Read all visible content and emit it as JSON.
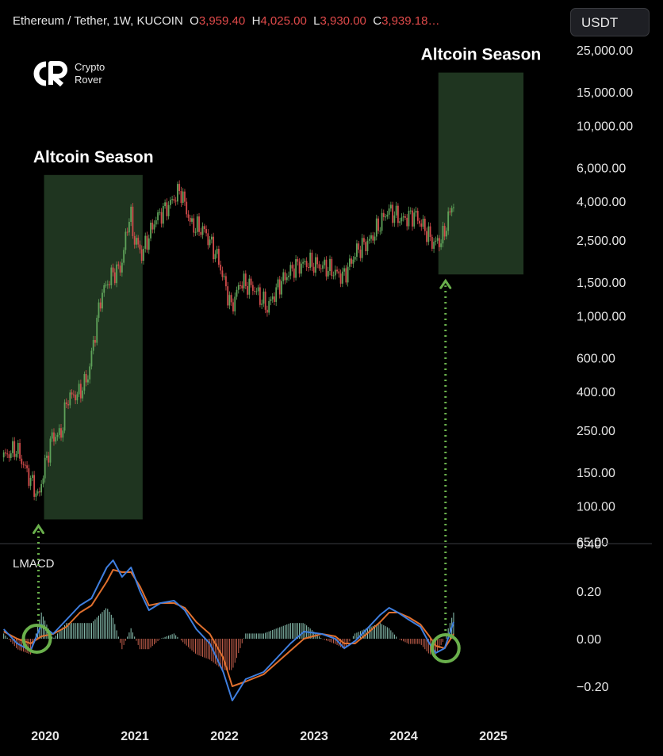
{
  "header": {
    "symbol": "Ethereum / Tether, 1W, KUCOIN",
    "open_label": "O",
    "open": "3,959.40",
    "high_label": "H",
    "high": "4,025.00",
    "low_label": "L",
    "low": "3,930.00",
    "close_label": "C",
    "close": "3,939.18…"
  },
  "currency": "USDT",
  "logo": {
    "line1": "Crypto",
    "line2": "Rover",
    "icon": "crypto-rover-logo-icon"
  },
  "colors": {
    "up": "#5fa35a",
    "down": "#d24b4b",
    "highlight": "#1f3520",
    "macd": "#3f7fe0",
    "signal": "#e0702e",
    "marker": "#6ab04c"
  },
  "chart_data": [
    {
      "type": "candlestick",
      "ylabel": "",
      "y_scale": "log",
      "ylim": [
        65,
        25000
      ],
      "y_ticks": [
        "25,000.00",
        "15,000.00",
        "10,000.00",
        "6,000.00",
        "4,000.00",
        "2,500.00",
        "1,500.00",
        "1,000.00",
        "600.00",
        "400.00",
        "250.00",
        "150.00",
        "100.00",
        "65.00"
      ],
      "x_ticks": [
        "2020",
        "2021",
        "2022",
        "2023",
        "2024",
        "2025"
      ],
      "xlim": [
        2019.9,
        2025.7
      ],
      "price_path": [
        [
          2019.9,
          180
        ],
        [
          2020.05,
          200
        ],
        [
          2020.2,
          140
        ],
        [
          2020.3,
          110
        ],
        [
          2020.35,
          150
        ],
        [
          2020.45,
          230
        ],
        [
          2020.55,
          240
        ],
        [
          2020.62,
          370
        ],
        [
          2020.75,
          390
        ],
        [
          2020.85,
          480
        ],
        [
          2021.0,
          1300
        ],
        [
          2021.12,
          1650
        ],
        [
          2021.22,
          1800
        ],
        [
          2021.32,
          3600
        ],
        [
          2021.35,
          2700
        ],
        [
          2021.45,
          2100
        ],
        [
          2021.6,
          3200
        ],
        [
          2021.75,
          3800
        ],
        [
          2021.88,
          4600
        ],
        [
          2022.0,
          3000
        ],
        [
          2022.15,
          2800
        ],
        [
          2022.3,
          2000
        ],
        [
          2022.45,
          1100
        ],
        [
          2022.55,
          1500
        ],
        [
          2022.7,
          1400
        ],
        [
          2022.85,
          1100
        ],
        [
          2023.0,
          1500
        ],
        [
          2023.15,
          1800
        ],
        [
          2023.3,
          1900
        ],
        [
          2023.5,
          1800
        ],
        [
          2023.7,
          1600
        ],
        [
          2023.85,
          2200
        ],
        [
          2024.0,
          2500
        ],
        [
          2024.2,
          3600
        ],
        [
          2024.35,
          3200
        ],
        [
          2024.5,
          3400
        ],
        [
          2024.62,
          2800
        ],
        [
          2024.7,
          2400
        ],
        [
          2024.8,
          2500
        ],
        [
          2024.92,
          3900
        ]
      ],
      "annotations": [
        {
          "text": "Altcoin Season",
          "x_start": 2020.35,
          "x_end": 2021.45,
          "y_low": 85,
          "y_high": 5500
        },
        {
          "text": "Altcoin Season",
          "x_start": 2024.75,
          "x_end": 2025.7,
          "y_low": 1650,
          "y_high": 19000
        }
      ]
    },
    {
      "type": "line",
      "title": "LMACD",
      "ylim": [
        -0.28,
        0.4
      ],
      "y_ticks": [
        "0.40",
        "0.20",
        "0.00",
        "−0.20"
      ],
      "series": [
        {
          "values": [
            [
              2019.9,
              0.04
            ],
            [
              2020.05,
              -0.02
            ],
            [
              2020.2,
              -0.05
            ],
            [
              2020.32,
              0.06
            ],
            [
              2020.45,
              0.02
            ],
            [
              2020.6,
              0.08
            ],
            [
              2020.75,
              0.14
            ],
            [
              2020.88,
              0.17
            ],
            [
              2021.05,
              0.3
            ],
            [
              2021.12,
              0.33
            ],
            [
              2021.22,
              0.26
            ],
            [
              2021.32,
              0.3
            ],
            [
              2021.42,
              0.2
            ],
            [
              2021.52,
              0.12
            ],
            [
              2021.65,
              0.15
            ],
            [
              2021.8,
              0.16
            ],
            [
              2021.92,
              0.12
            ],
            [
              2022.05,
              0.04
            ],
            [
              2022.2,
              -0.02
            ],
            [
              2022.35,
              -0.14
            ],
            [
              2022.45,
              -0.26
            ],
            [
              2022.6,
              -0.17
            ],
            [
              2022.8,
              -0.14
            ],
            [
              2022.95,
              -0.08
            ],
            [
              2023.1,
              -0.02
            ],
            [
              2023.25,
              0.03
            ],
            [
              2023.45,
              0.02
            ],
            [
              2023.6,
              0.0
            ],
            [
              2023.7,
              -0.04
            ],
            [
              2023.82,
              -0.01
            ],
            [
              2023.95,
              0.04
            ],
            [
              2024.1,
              0.1
            ],
            [
              2024.2,
              0.13
            ],
            [
              2024.3,
              0.11
            ],
            [
              2024.42,
              0.08
            ],
            [
              2024.55,
              0.05
            ],
            [
              2024.65,
              -0.02
            ],
            [
              2024.72,
              -0.06
            ],
            [
              2024.82,
              -0.04
            ],
            [
              2024.92,
              0.07
            ]
          ]
        },
        {
          "values": [
            [
              2019.9,
              0.03
            ],
            [
              2020.05,
              0.0
            ],
            [
              2020.2,
              -0.02
            ],
            [
              2020.32,
              0.01
            ],
            [
              2020.45,
              0.02
            ],
            [
              2020.6,
              0.05
            ],
            [
              2020.75,
              0.11
            ],
            [
              2020.88,
              0.14
            ],
            [
              2021.05,
              0.24
            ],
            [
              2021.12,
              0.29
            ],
            [
              2021.22,
              0.28
            ],
            [
              2021.32,
              0.28
            ],
            [
              2021.42,
              0.22
            ],
            [
              2021.52,
              0.14
            ],
            [
              2021.65,
              0.15
            ],
            [
              2021.8,
              0.15
            ],
            [
              2021.92,
              0.13
            ],
            [
              2022.05,
              0.07
            ],
            [
              2022.2,
              0.02
            ],
            [
              2022.35,
              -0.08
            ],
            [
              2022.45,
              -0.2
            ],
            [
              2022.6,
              -0.18
            ],
            [
              2022.8,
              -0.15
            ],
            [
              2022.95,
              -0.1
            ],
            [
              2023.1,
              -0.05
            ],
            [
              2023.25,
              0.0
            ],
            [
              2023.45,
              0.02
            ],
            [
              2023.6,
              0.01
            ],
            [
              2023.7,
              -0.02
            ],
            [
              2023.82,
              -0.02
            ],
            [
              2023.95,
              0.02
            ],
            [
              2024.1,
              0.07
            ],
            [
              2024.2,
              0.11
            ],
            [
              2024.3,
              0.11
            ],
            [
              2024.42,
              0.09
            ],
            [
              2024.55,
              0.06
            ],
            [
              2024.65,
              0.01
            ],
            [
              2024.72,
              -0.03
            ],
            [
              2024.82,
              -0.04
            ],
            [
              2024.92,
              0.02
            ]
          ]
        }
      ],
      "markers": [
        {
          "x": 2020.27,
          "y": 0.0
        },
        {
          "x": 2024.83,
          "y": -0.04
        }
      ]
    }
  ]
}
